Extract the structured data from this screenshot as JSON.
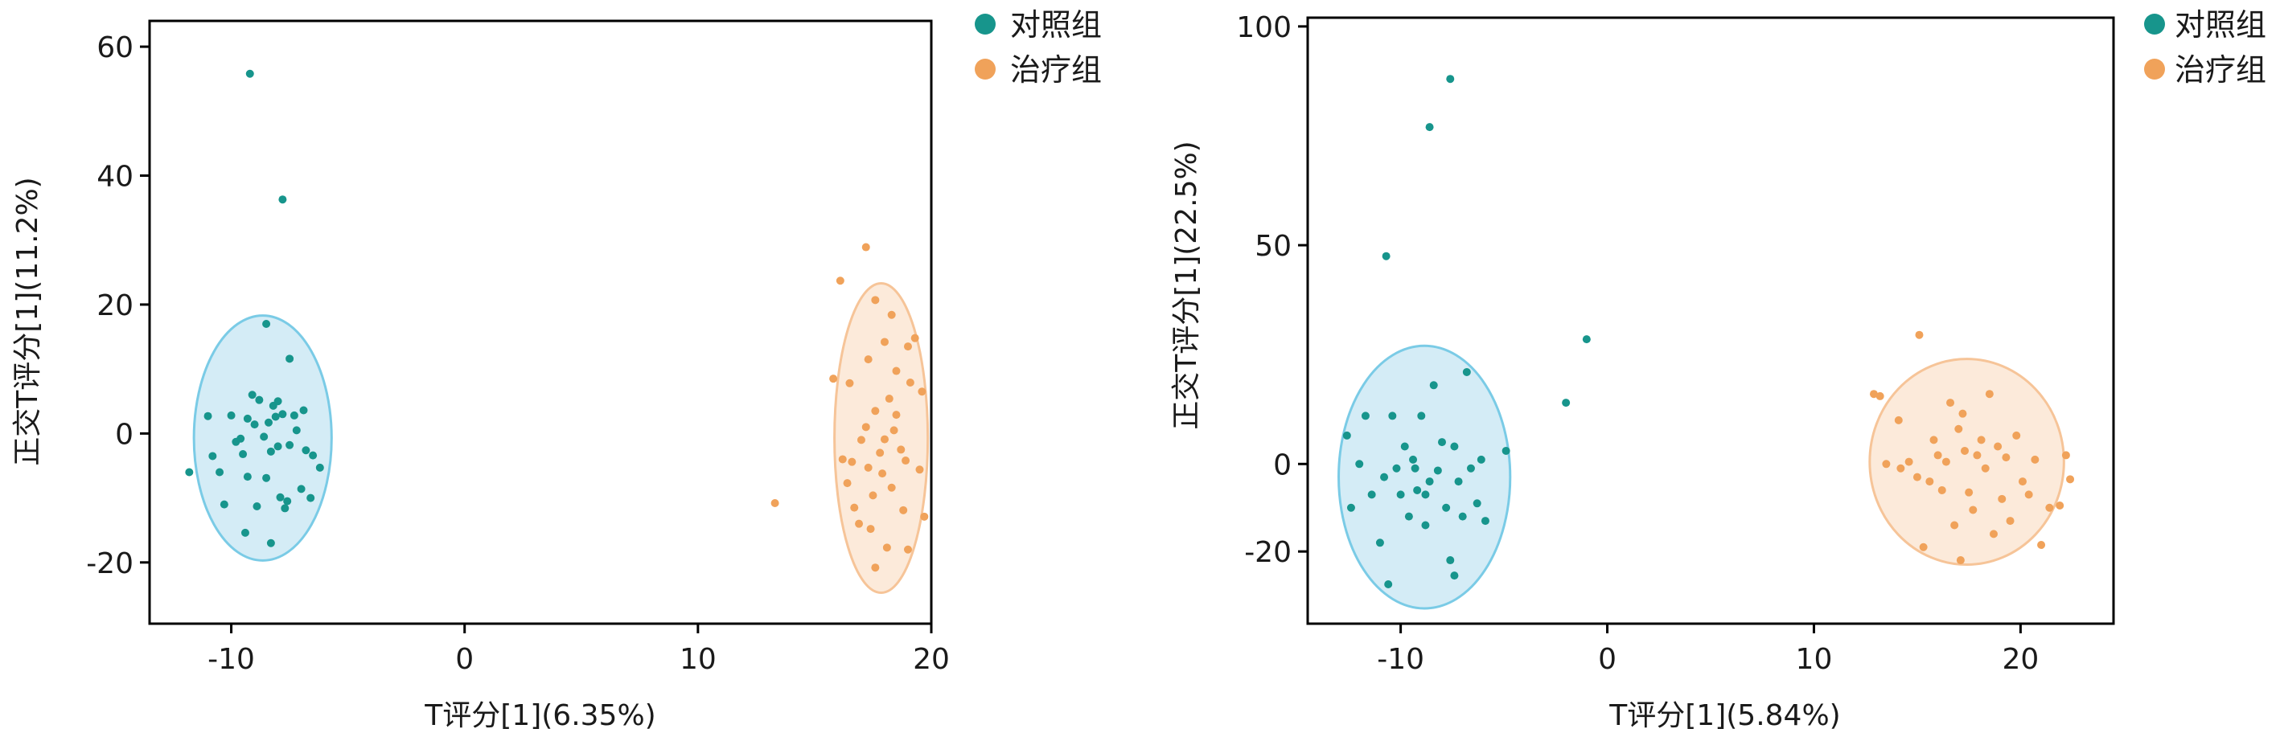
{
  "colors": {
    "control": "#17958C",
    "treatment": "#F0A25A",
    "control_ellipse_fill": "#CDE9F4",
    "control_ellipse_stroke": "#7ACBE6",
    "treatment_ellipse_fill": "#FCE6D3",
    "treatment_ellipse_stroke": "#F6C498"
  },
  "chart_data": [
    {
      "type": "scatter",
      "xlabel": "T评分[1](6.35%)",
      "ylabel": "正交T评分[1](11.2%)",
      "xlim": [
        -13.5,
        20.0
      ],
      "ylim": [
        -29.5,
        64.0
      ],
      "xticks": [
        -10,
        0,
        10,
        20
      ],
      "yticks": [
        -20,
        0,
        20,
        40,
        60
      ],
      "legend": {
        "position": "top-right-outside",
        "entries": [
          "对照组",
          "治疗组"
        ]
      },
      "series": [
        {
          "name": "对照组",
          "points": [
            [
              -9.2,
              55.8
            ],
            [
              -7.8,
              36.3
            ],
            [
              -8.5,
              17.0
            ],
            [
              -7.5,
              11.6
            ],
            [
              -11.8,
              -6.0
            ],
            [
              -11,
              2.7
            ],
            [
              -10.8,
              -3.5
            ],
            [
              -10.5,
              -6.0
            ],
            [
              -10.3,
              -11.0
            ],
            [
              -10,
              2.8
            ],
            [
              -9.8,
              -1.3
            ],
            [
              -9.6,
              -0.8
            ],
            [
              -9.5,
              -3.2
            ],
            [
              -9.3,
              2.3
            ],
            [
              -9.3,
              -6.7
            ],
            [
              -9.1,
              6.0
            ],
            [
              -9.0,
              1.4
            ],
            [
              -8.9,
              -11.3
            ],
            [
              -8.8,
              5.2
            ],
            [
              -8.6,
              -0.5
            ],
            [
              -8.5,
              -6.9
            ],
            [
              -8.4,
              1.7
            ],
            [
              -8.3,
              -2.8
            ],
            [
              -8.2,
              4.3
            ],
            [
              -8.1,
              2.6
            ],
            [
              -8.0,
              -2.0
            ],
            [
              -7.9,
              -9.9
            ],
            [
              -7.8,
              3.0
            ],
            [
              -7.7,
              -11.6
            ],
            [
              -7.6,
              -10.5
            ],
            [
              -7.5,
              -1.8
            ],
            [
              -7.3,
              2.8
            ],
            [
              -7.2,
              0.5
            ],
            [
              -7.0,
              -8.6
            ],
            [
              -6.9,
              3.6
            ],
            [
              -6.8,
              -2.6
            ],
            [
              -6.6,
              -10.0
            ],
            [
              -6.5,
              -3.4
            ],
            [
              -6.2,
              -5.3
            ],
            [
              -8.3,
              -17.0
            ],
            [
              -9.4,
              -15.4
            ],
            [
              -8.0,
              5.0
            ]
          ]
        },
        {
          "name": "治疗组",
          "points": [
            [
              13.3,
              -10.8
            ],
            [
              16.1,
              23.7
            ],
            [
              17.2,
              28.9
            ],
            [
              15.8,
              8.5
            ],
            [
              16.2,
              -4.0
            ],
            [
              16.4,
              -7.7
            ],
            [
              16.5,
              7.8
            ],
            [
              16.7,
              -11.5
            ],
            [
              16.9,
              -14.0
            ],
            [
              17.0,
              -1.0
            ],
            [
              17.2,
              1.0
            ],
            [
              17.3,
              11.5
            ],
            [
              17.3,
              -5.3
            ],
            [
              17.5,
              -9.6
            ],
            [
              17.6,
              -20.8
            ],
            [
              17.6,
              3.5
            ],
            [
              17.8,
              -3.0
            ],
            [
              17.9,
              -6.2
            ],
            [
              18.0,
              -0.9
            ],
            [
              18.0,
              14.2
            ],
            [
              18.1,
              -17.7
            ],
            [
              18.2,
              5.4
            ],
            [
              18.3,
              -8.4
            ],
            [
              18.4,
              0.5
            ],
            [
              18.5,
              2.9
            ],
            [
              18.5,
              9.7
            ],
            [
              18.7,
              -2.5
            ],
            [
              18.8,
              -11.9
            ],
            [
              18.9,
              -4.2
            ],
            [
              19.0,
              13.5
            ],
            [
              19.1,
              7.9
            ],
            [
              19.3,
              14.8
            ],
            [
              19.5,
              -5.6
            ],
            [
              19.6,
              6.5
            ],
            [
              19.7,
              -12.9
            ],
            [
              17.6,
              20.7
            ],
            [
              18.3,
              18.4
            ],
            [
              17.4,
              -14.8
            ],
            [
              19.0,
              -18.0
            ],
            [
              16.6,
              -4.4
            ]
          ]
        }
      ],
      "ellipses": [
        {
          "series": "对照组",
          "center": [
            -8.65,
            -0.7
          ],
          "radii": [
            2.95,
            19.0
          ]
        },
        {
          "series": "治疗组",
          "center": [
            17.85,
            -0.7
          ],
          "radii": [
            2.0,
            24.0
          ]
        }
      ]
    },
    {
      "type": "scatter",
      "xlabel": "T评分[1](5.84%)",
      "ylabel": "正交T评分[1](22.5%)",
      "xlim": [
        -14.5,
        24.5
      ],
      "ylim": [
        -36.5,
        102.0
      ],
      "xticks": [
        -10,
        0,
        10,
        20
      ],
      "yticks": [
        -20,
        0,
        50,
        100
      ],
      "legend": {
        "position": "top-right-outside",
        "entries": [
          "对照组",
          "治疗组"
        ]
      },
      "series": [
        {
          "name": "对照组",
          "points": [
            [
              -7.6,
              88.0
            ],
            [
              -8.6,
              77.0
            ],
            [
              -10.7,
              47.5
            ],
            [
              -1.0,
              28.5
            ],
            [
              -2.0,
              14.0
            ],
            [
              -7.4,
              -25.5
            ],
            [
              -12.6,
              6.5
            ],
            [
              -12.4,
              -10.0
            ],
            [
              -11.7,
              11.0
            ],
            [
              -11.4,
              -7.0
            ],
            [
              -11.0,
              -18.0
            ],
            [
              -10.8,
              -3.0
            ],
            [
              -10.6,
              -27.5
            ],
            [
              -10.4,
              11.0
            ],
            [
              -10.2,
              -1.0
            ],
            [
              -10.0,
              -7.0
            ],
            [
              -9.8,
              4.0
            ],
            [
              -9.6,
              -12.0
            ],
            [
              -9.4,
              1.0
            ],
            [
              -9.2,
              -6.0
            ],
            [
              -9.0,
              11.0
            ],
            [
              -8.8,
              -14.0
            ],
            [
              -8.6,
              -4.0
            ],
            [
              -8.4,
              18.0
            ],
            [
              -8.2,
              -1.5
            ],
            [
              -8.0,
              5.0
            ],
            [
              -7.8,
              -10.0
            ],
            [
              -7.6,
              -22.0
            ],
            [
              -7.4,
              4.0
            ],
            [
              -7.2,
              -4.0
            ],
            [
              -7.0,
              -12.0
            ],
            [
              -6.8,
              21.0
            ],
            [
              -6.6,
              -1.0
            ],
            [
              -6.3,
              -9.0
            ],
            [
              -6.1,
              1.0
            ],
            [
              -5.9,
              -13.0
            ],
            [
              -4.9,
              3.0
            ],
            [
              -8.8,
              -7.0
            ],
            [
              -9.3,
              -1.0
            ],
            [
              -12.0,
              0.0
            ]
          ]
        },
        {
          "name": "治疗组",
          "points": [
            [
              12.9,
              16.0
            ],
            [
              13.2,
              15.5
            ],
            [
              13.5,
              0.0
            ],
            [
              14.1,
              10.0
            ],
            [
              14.2,
              -1.0
            ],
            [
              14.6,
              0.5
            ],
            [
              15.0,
              -3.0
            ],
            [
              15.1,
              29.5
            ],
            [
              15.3,
              -19.0
            ],
            [
              15.6,
              -4.0
            ],
            [
              15.8,
              5.5
            ],
            [
              16.0,
              2.0
            ],
            [
              16.2,
              -6.0
            ],
            [
              16.4,
              0.5
            ],
            [
              16.6,
              14.0
            ],
            [
              16.8,
              -14.0
            ],
            [
              17.0,
              8.0
            ],
            [
              17.1,
              -22.0
            ],
            [
              17.2,
              11.5
            ],
            [
              17.3,
              3.0
            ],
            [
              17.5,
              -6.5
            ],
            [
              17.7,
              -10.5
            ],
            [
              17.9,
              2.0
            ],
            [
              18.1,
              5.5
            ],
            [
              18.3,
              -1.0
            ],
            [
              18.5,
              16.0
            ],
            [
              18.7,
              -16.0
            ],
            [
              18.9,
              4.0
            ],
            [
              19.1,
              -8.0
            ],
            [
              19.3,
              1.5
            ],
            [
              19.5,
              -13.0
            ],
            [
              19.8,
              6.5
            ],
            [
              20.1,
              -4.0
            ],
            [
              20.4,
              -7.0
            ],
            [
              20.7,
              1.0
            ],
            [
              21.0,
              -18.5
            ],
            [
              21.4,
              -10.0
            ],
            [
              21.9,
              -9.5
            ],
            [
              22.2,
              2.0
            ],
            [
              22.4,
              -3.5
            ]
          ]
        }
      ],
      "ellipses": [
        {
          "series": "对照组",
          "center": [
            -8.85,
            -3.0
          ],
          "radii": [
            4.15,
            30.0
          ]
        },
        {
          "series": "治疗组",
          "center": [
            17.4,
            0.5
          ],
          "radii": [
            4.7,
            23.5
          ]
        }
      ]
    }
  ]
}
